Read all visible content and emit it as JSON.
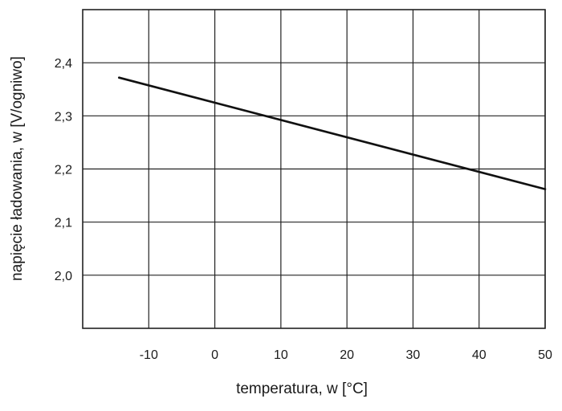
{
  "chart_data": {
    "type": "line",
    "xlabel": "temperatura, w [°C]",
    "ylabel": "napięcie ładowania, w [V/ogniwo]",
    "xlim": [
      -20,
      50
    ],
    "ylim": [
      1.9,
      2.5
    ],
    "x_ticks": [
      -10,
      0,
      10,
      20,
      30,
      40,
      50
    ],
    "x_tick_labels": [
      "-10",
      "0",
      "10",
      "20",
      "30",
      "40",
      "50"
    ],
    "y_ticks": [
      2.0,
      2.1,
      2.2,
      2.3,
      2.4
    ],
    "y_tick_labels": [
      "2,0",
      "2,1",
      "2,2",
      "2,3",
      "2,4"
    ],
    "grid": true,
    "series": [
      {
        "x": [
          -14.5,
          50
        ],
        "y": [
          2.372,
          2.162
        ],
        "color": "#111111"
      }
    ]
  }
}
